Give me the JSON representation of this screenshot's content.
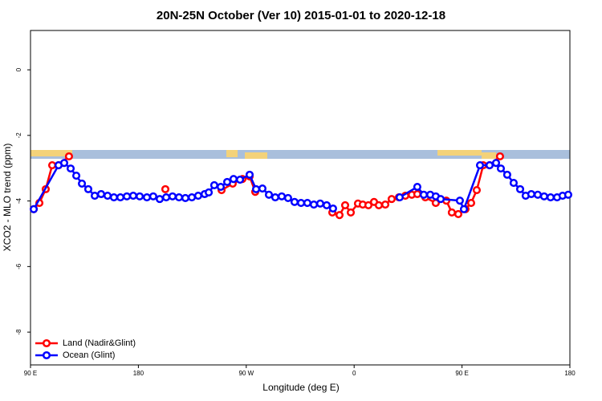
{
  "chart_data": {
    "type": "line",
    "title": "20N-25N October (Ver 10)   2015-01-01 to 2020-12-18",
    "x_label": "Longitude (deg E)",
    "y_label": "XCO2 - MLO trend (ppm)",
    "xlim": [
      90,
      540
    ],
    "ylim": [
      -9,
      1.2
    ],
    "xticks": [
      {
        "value": 90,
        "label": "90 E"
      },
      {
        "value": 180,
        "label": "180"
      },
      {
        "value": 270,
        "label": "90 W"
      },
      {
        "value": 360,
        "label": "0"
      },
      {
        "value": 450,
        "label": "90 E"
      },
      {
        "value": 540,
        "label": "180"
      }
    ],
    "yticks": [
      0,
      -2,
      -4,
      -6,
      -8
    ],
    "legend": "bottom-left",
    "series": [
      {
        "name": "Land (Nadir&Glint)",
        "color": "#ff0000",
        "x": [
          92.7,
          97.4,
          102.7,
          108.1,
          113.4,
          122.1,
          160,
          202.5,
          240,
          249.4,
          258.7,
          266.8,
          272.8,
          277.5,
          310,
          341.8,
          347.8,
          352.5,
          357.2,
          363.2,
          367.2,
          371.9,
          376.6,
          380.6,
          386.0,
          391.3,
          397.3,
          402.7,
          408.1,
          412.7,
          419.4,
          428.1,
          436.9,
          441.5,
          446.9,
          452.9,
          457.6,
          462.3,
          467.7,
          473.0,
          481.7
        ],
        "values": [
          -4.25,
          -4.06,
          -3.64,
          -2.91,
          -2.91,
          -2.64,
          null,
          -3.64,
          null,
          -3.67,
          -3.47,
          -3.33,
          -3.25,
          -3.72,
          null,
          -4.35,
          -4.43,
          -4.13,
          -4.35,
          -4.08,
          -4.11,
          -4.13,
          -4.03,
          -4.13,
          -4.11,
          -3.94,
          -3.89,
          -3.84,
          -3.81,
          -3.79,
          -3.89,
          -4.06,
          -3.99,
          -4.35,
          -4.4,
          -4.25,
          -4.06,
          -3.67,
          -2.91,
          -2.91,
          -2.64
        ]
      },
      {
        "name": "Ocean (Glint)",
        "color": "#0000ff",
        "x": [
          92.7,
          113.4,
          118.1,
          123.5,
          128.2,
          132.9,
          138.2,
          143.6,
          148.9,
          154.3,
          159.6,
          165.0,
          170.4,
          175.7,
          181.1,
          187.1,
          192.4,
          197.8,
          203.2,
          208.5,
          213.9,
          219.2,
          224.6,
          229.9,
          235.3,
          238.7,
          243.3,
          248.7,
          254.1,
          259.4,
          264.8,
          272.8,
          278.2,
          283.5,
          288.9,
          294.2,
          299.6,
          304.9,
          310.3,
          315.7,
          321.0,
          326.4,
          331.7,
          337.1,
          342.4,
          370,
          398.0,
          412.7,
          418.1,
          423.5,
          428.1,
          432.2,
          448.2,
          451.6,
          465.0,
          473.0,
          478.4,
          482.4,
          487.7,
          493.1,
          498.5,
          503.1,
          507.8,
          513.2,
          518.5,
          523.9,
          529.3,
          533.9,
          538.6
        ],
        "values": [
          -4.25,
          -2.91,
          -2.84,
          -3.01,
          -3.23,
          -3.47,
          -3.64,
          -3.84,
          -3.79,
          -3.84,
          -3.89,
          -3.89,
          -3.86,
          -3.84,
          -3.86,
          -3.89,
          -3.86,
          -3.94,
          -3.89,
          -3.86,
          -3.89,
          -3.91,
          -3.89,
          -3.84,
          -3.79,
          -3.74,
          -3.52,
          -3.57,
          -3.42,
          -3.33,
          -3.35,
          -3.2,
          -3.64,
          -3.62,
          -3.81,
          -3.89,
          -3.86,
          -3.91,
          -4.03,
          -4.06,
          -4.06,
          -4.11,
          -4.08,
          -4.13,
          -4.23,
          null,
          -3.89,
          -3.57,
          -3.81,
          -3.81,
          -3.86,
          -3.94,
          -3.99,
          -4.25,
          -2.91,
          -2.91,
          -2.84,
          -3.01,
          -3.2,
          -3.45,
          -3.64,
          -3.84,
          -3.79,
          -3.81,
          -3.86,
          -3.89,
          -3.89,
          -3.84,
          -3.81
        ]
      }
    ]
  }
}
